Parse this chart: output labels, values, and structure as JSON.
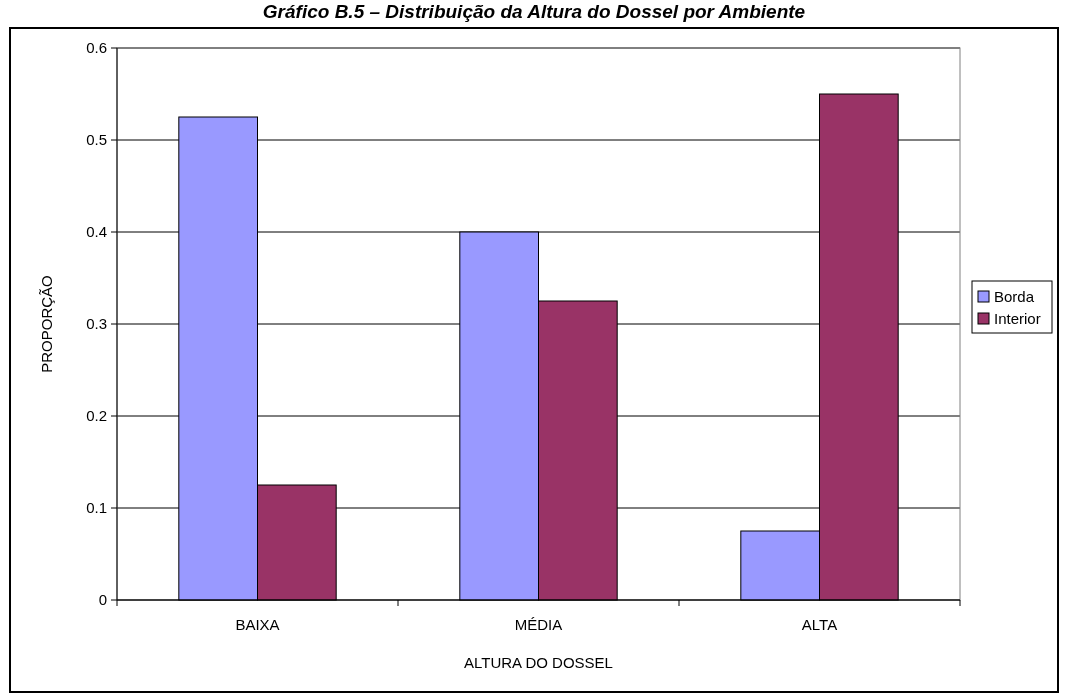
{
  "chart_data": {
    "type": "bar",
    "title": "Gráfico B.5 – Distribuição da Altura do Dossel por Ambiente",
    "xlabel": "ALTURA DO DOSSEL",
    "ylabel": "PROPORÇÃO",
    "categories": [
      "BAIXA",
      "MÉDIA",
      "ALTA"
    ],
    "series": [
      {
        "name": "Borda",
        "color": "#9999ff",
        "values": [
          0.525,
          0.4,
          0.075
        ]
      },
      {
        "name": "Interior",
        "color": "#993366",
        "values": [
          0.125,
          0.325,
          0.55
        ]
      }
    ],
    "ylim": [
      0,
      0.6
    ],
    "yticks": [
      0,
      0.1,
      0.2,
      0.3,
      0.4,
      0.5,
      0.6
    ],
    "grid": "y",
    "legend": "right"
  }
}
